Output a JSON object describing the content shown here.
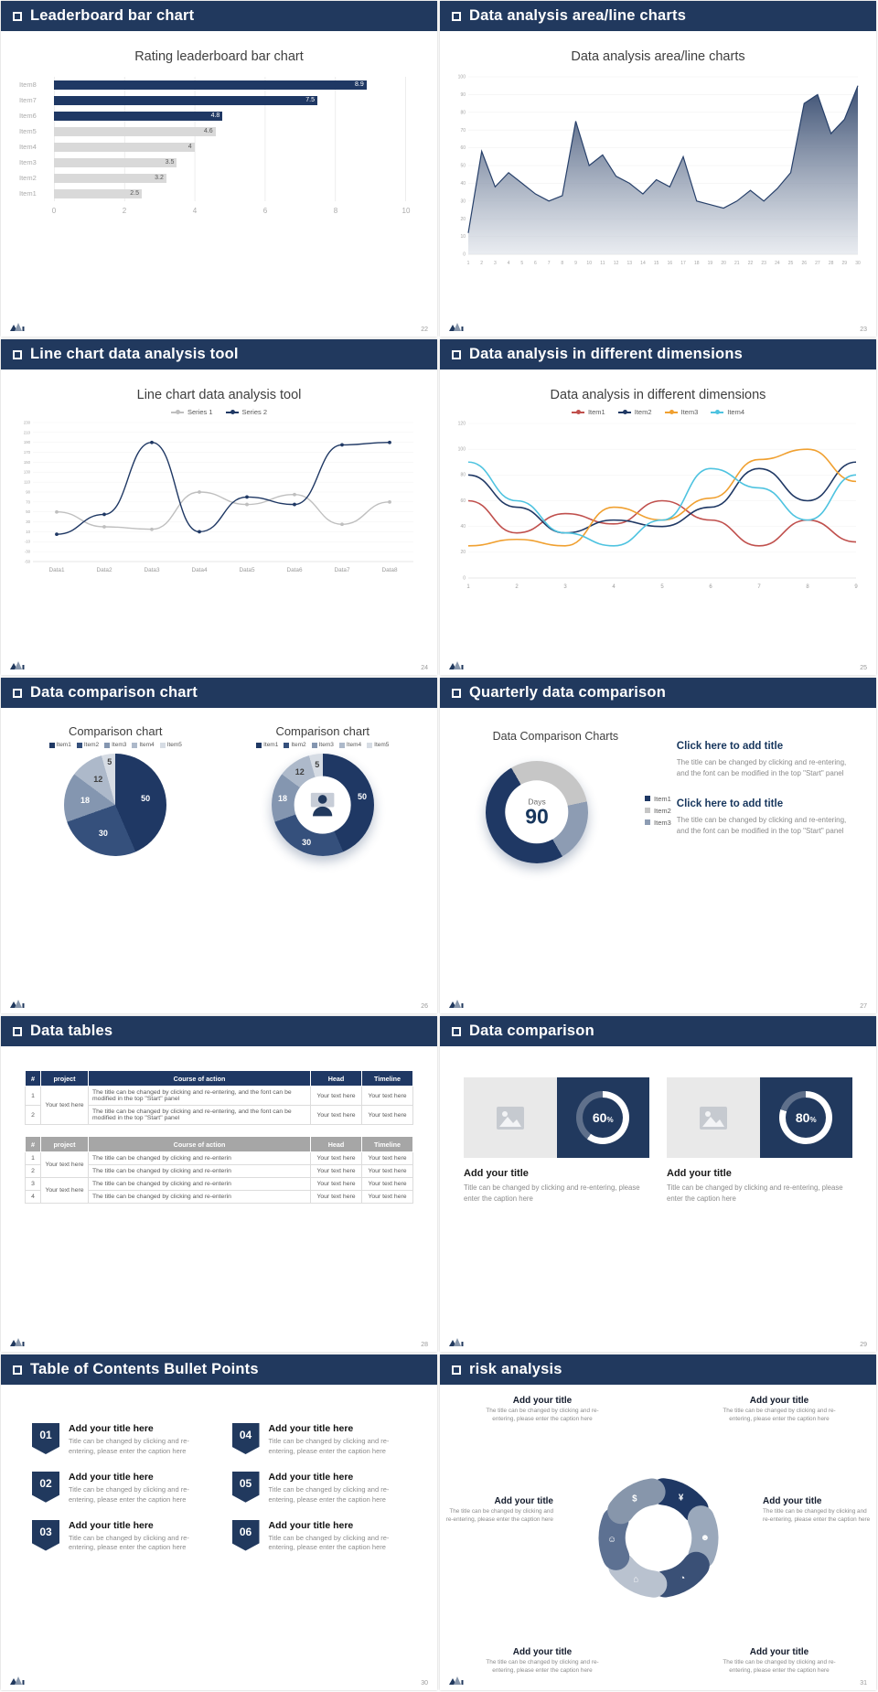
{
  "theme": {
    "navy": "#1f3864",
    "header_bg": "#21395e",
    "bar_gray": "#d9d9d9",
    "text_gray": "#8c8c8c"
  },
  "slides": [
    {
      "header": "Leaderboard bar chart",
      "title": "Rating leaderboard bar chart",
      "page": "22",
      "chart_data": {
        "type": "bar",
        "orientation": "horizontal",
        "categories": [
          "Item1",
          "Item2",
          "Item3",
          "Item4",
          "Item5",
          "Item6",
          "Item7",
          "Item8"
        ],
        "values": [
          2.5,
          3.2,
          3.5,
          4,
          4.6,
          4.8,
          7.5,
          8.9
        ],
        "bar_colors": [
          "#d9d9d9",
          "#d9d9d9",
          "#d9d9d9",
          "#d9d9d9",
          "#d9d9d9",
          "#1f3864",
          "#1f3864",
          "#1f3864"
        ],
        "xlim": [
          0,
          10
        ],
        "xticks": [
          0,
          2,
          4,
          6,
          8,
          10
        ]
      }
    },
    {
      "header": "Data analysis area/line charts",
      "title": "Data analysis area/line charts",
      "page": "23",
      "chart_data": {
        "type": "area",
        "x": [
          1,
          2,
          3,
          4,
          5,
          6,
          7,
          8,
          9,
          10,
          11,
          12,
          13,
          14,
          15,
          16,
          17,
          18,
          19,
          20,
          21,
          22,
          23,
          24,
          25,
          26,
          27,
          28,
          29,
          30
        ],
        "values": [
          12,
          58,
          38,
          46,
          40,
          34,
          30,
          33,
          75,
          50,
          56,
          44,
          40,
          34,
          42,
          38,
          55,
          30,
          28,
          26,
          30,
          36,
          30,
          37,
          46,
          85,
          90,
          68,
          76,
          95
        ],
        "ylim": [
          0,
          100
        ],
        "ytick_step": 10,
        "line_color": "#27406a",
        "fill_from": "#31466b",
        "fill_to": "#e2e6ec"
      }
    },
    {
      "header": "Line chart data analysis tool",
      "title": "Line chart data analysis tool",
      "page": "24",
      "chart_data": {
        "type": "line",
        "categories": [
          "Data1",
          "Data2",
          "Data3",
          "Data4",
          "Data5",
          "Data6",
          "Data7",
          "Data8"
        ],
        "ylim": [
          -50,
          230
        ],
        "ytick_step": 20,
        "series": [
          {
            "name": "Series 1",
            "color": "#bfbfbf",
            "values": [
              50,
              20,
              15,
              90,
              65,
              85,
              25,
              70
            ]
          },
          {
            "name": "Series 2",
            "color": "#1f3864",
            "values": [
              5,
              45,
              190,
              10,
              80,
              65,
              185,
              190
            ]
          }
        ]
      }
    },
    {
      "header": "Data analysis in different dimensions",
      "title": "Data analysis in different dimensions",
      "page": "25",
      "chart_data": {
        "type": "line",
        "x": [
          1,
          2,
          3,
          4,
          5,
          6,
          7,
          8,
          9
        ],
        "ylim": [
          0,
          120
        ],
        "ytick_step": 20,
        "series": [
          {
            "name": "Item1",
            "color": "#c0504d",
            "values": [
              60,
              35,
              50,
              42,
              60,
              45,
              25,
              45,
              28
            ]
          },
          {
            "name": "Item2",
            "color": "#1f3864",
            "values": [
              80,
              55,
              35,
              45,
              40,
              55,
              85,
              60,
              90
            ]
          },
          {
            "name": "Item3",
            "color": "#f0a030",
            "values": [
              25,
              30,
              25,
              55,
              45,
              62,
              92,
              100,
              75
            ]
          },
          {
            "name": "Item4",
            "color": "#4ec3e0",
            "values": [
              90,
              60,
              35,
              25,
              45,
              85,
              70,
              45,
              80
            ]
          }
        ]
      }
    },
    {
      "header": "Data comparison chart",
      "page": "26",
      "charts": [
        {
          "title": "Comparison chart",
          "type": "pie"
        },
        {
          "title": "Comparison chart",
          "type": "donut"
        }
      ],
      "chart_data": {
        "type": "pie",
        "labels": [
          "Item1",
          "Item2",
          "Item3",
          "Item4",
          "Item5"
        ],
        "values": [
          50,
          30,
          18,
          12,
          5
        ],
        "colors": [
          "#1f3864",
          "#35507c",
          "#8496b0",
          "#adb9ca",
          "#d6dce4"
        ]
      }
    },
    {
      "header": "Quarterly data comparison",
      "page": "27",
      "left_title": "Data Comparison Charts",
      "chart_data": {
        "type": "donut",
        "center_label": "Days",
        "center_value": "90",
        "labels": [
          "Item1",
          "Item2",
          "Item3"
        ],
        "values": [
          50,
          30,
          20
        ],
        "colors": [
          "#1f3864",
          "#c6c6c6",
          "#8d9cb3"
        ]
      },
      "blocks": [
        {
          "title": "Click here to add title",
          "body": "The title can be changed by clicking and re-entering, and the font can be modified in the top \"Start\" panel"
        },
        {
          "title": "Click here to add title",
          "body": "The title can be changed by clicking and re-entering, and the font can be modified in the top \"Start\" panel"
        }
      ]
    },
    {
      "header": "Data tables",
      "page": "28",
      "table1": {
        "header_bg": "#1f3864",
        "columns": [
          "#",
          "project",
          "Course of action",
          "Head",
          "Timeline"
        ],
        "project": "Your text here",
        "rows": [
          {
            "num": "1",
            "action": "The title can be changed by clicking and re-entering, and the font can be modified in the top \"Start\" panel",
            "head": "Your text here",
            "timeline": "Your text here"
          },
          {
            "num": "2",
            "action": "The title can be changed by clicking and re-entering, and the font can be modified in the top \"Start\" panel",
            "head": "Your text here",
            "timeline": "Your text here"
          }
        ]
      },
      "table2": {
        "header_bg": "#a6a6a6",
        "columns": [
          "#",
          "project",
          "Course of action",
          "Head",
          "Timeline"
        ],
        "project": "Your text here",
        "rows": [
          {
            "num": "1",
            "action": "The title can be changed by clicking and re-enterin",
            "head": "Your text here",
            "timeline": "Your text here"
          },
          {
            "num": "2",
            "action": "The title can be changed by clicking and re-enterin",
            "head": "Your text here",
            "timeline": "Your text here"
          },
          {
            "num": "3",
            "action": "The title can be changed by clicking and re-enterin",
            "head": "Your text here",
            "timeline": "Your text here"
          },
          {
            "num": "4",
            "action": "The title can be changed by clicking and re-enterin",
            "head": "Your text here",
            "timeline": "Your text here"
          }
        ]
      }
    },
    {
      "header": "Data comparison",
      "page": "29",
      "cards": [
        {
          "percent": 60,
          "title": "Add your title",
          "caption": "Title can be changed by clicking and re-entering, please enter the caption here"
        },
        {
          "percent": 80,
          "title": "Add your title",
          "caption": "Title can be changed by clicking and re-entering, please enter the caption here"
        }
      ]
    },
    {
      "header": "Table of Contents Bullet Points",
      "page": "30",
      "items": [
        {
          "num": "01",
          "title": "Add your title here",
          "caption": "Title can be changed by clicking and re-entering, please enter the caption here"
        },
        {
          "num": "02",
          "title": "Add your title here",
          "caption": "Title can be changed by clicking and re-entering, please enter the caption here"
        },
        {
          "num": "03",
          "title": "Add your title here",
          "caption": "Title can be changed by clicking and re-entering, please enter the caption here"
        },
        {
          "num": "04",
          "title": "Add your title here",
          "caption": "Title can be changed by clicking and re-entering, please enter the caption here"
        },
        {
          "num": "05",
          "title": "Add your title here",
          "caption": "Title can be changed by clicking and re-entering, please enter the caption here"
        },
        {
          "num": "06",
          "title": "Add your title here",
          "caption": "Title can be changed by clicking and re-entering, please enter the caption here"
        }
      ]
    },
    {
      "header": "risk analysis",
      "page": "31",
      "blocks": [
        {
          "title": "Add your title",
          "caption": "The title can be changed by clicking and re-entering, please enter the caption here"
        },
        {
          "title": "Add your title",
          "caption": "The title can be changed by clicking and re-entering, please enter the caption here"
        },
        {
          "title": "Add your title",
          "caption": "The title can be changed by clicking and re-entering, please enter the caption here"
        },
        {
          "title": "Add your title",
          "caption": "The title can be changed by clicking and re-entering, please enter the caption here"
        },
        {
          "title": "Add your title",
          "caption": "The title can be changed by clicking and re-entering, please enter the caption here"
        },
        {
          "title": "Add your title",
          "caption": "The title can be changed by clicking and re-entering, please enter the caption here"
        }
      ],
      "wheel": {
        "colors": [
          "#1f3864",
          "#9aa8bb",
          "#3a5076",
          "#b9c2cf",
          "#5d7192",
          "#8796ab"
        ],
        "icons": [
          "coins",
          "people",
          "pie",
          "building",
          "person",
          "moneybag"
        ]
      }
    }
  ]
}
